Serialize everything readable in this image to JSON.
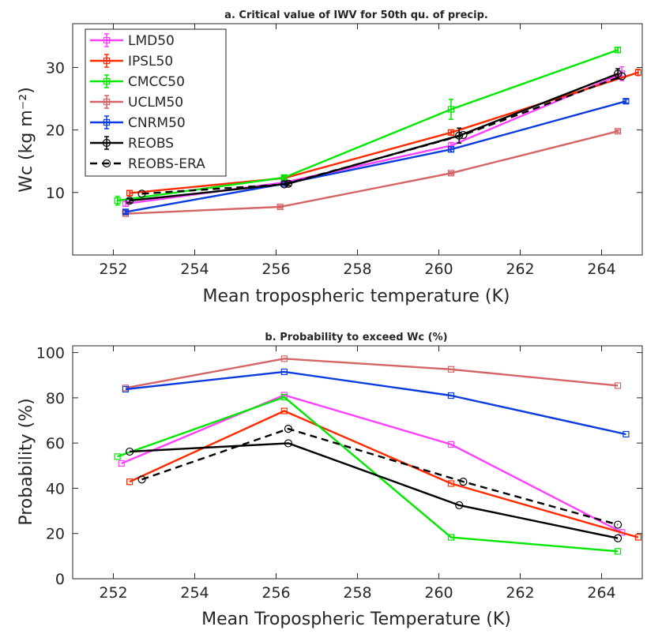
{
  "chart_data": [
    {
      "type": "line",
      "title": "a. Critical value of IWV for 50th qu. of precip.",
      "xlabel": "Mean tropospheric temperature (K)",
      "ylabel": "Wc (kg m⁻²)",
      "xlim": [
        251,
        265
      ],
      "ylim": [
        0,
        37
      ],
      "xticks": [
        252,
        254,
        256,
        258,
        260,
        262,
        264
      ],
      "yticks": [
        10,
        20,
        30
      ],
      "grid": false,
      "legend_position": "top-left",
      "series": [
        {
          "name": "LMD50",
          "color": "#ff40ff",
          "marker": "square",
          "dash": false,
          "x": [
            252.3,
            256.2,
            260.3,
            264.5
          ],
          "y": [
            8.2,
            11.6,
            17.5,
            29.0
          ],
          "err": [
            0.4,
            0.3,
            0.5,
            1.1
          ]
        },
        {
          "name": "IPSL50",
          "color": "#ff2a00",
          "marker": "square",
          "dash": false,
          "x": [
            252.4,
            256.2,
            260.3,
            264.9
          ],
          "y": [
            9.9,
            12.3,
            19.6,
            29.2
          ],
          "err": [
            0.4,
            0.3,
            0.4,
            0.5
          ]
        },
        {
          "name": "CMCC50",
          "color": "#00e800",
          "marker": "square",
          "dash": false,
          "x": [
            252.1,
            256.2,
            260.3,
            264.4
          ],
          "y": [
            8.7,
            12.4,
            23.3,
            32.8
          ],
          "err": [
            0.7,
            0.3,
            1.6,
            0.4
          ]
        },
        {
          "name": "UCLM50",
          "color": "#d56464",
          "marker": "square",
          "dash": false,
          "x": [
            252.3,
            256.1,
            260.3,
            264.4
          ],
          "y": [
            6.6,
            7.7,
            13.1,
            19.8
          ],
          "err": [
            0.2,
            0.2,
            0.2,
            0.2
          ]
        },
        {
          "name": "CNRM50",
          "color": "#0b3bdf",
          "marker": "square",
          "dash": false,
          "x": [
            252.3,
            256.2,
            260.3,
            264.6
          ],
          "y": [
            6.9,
            11.4,
            16.9,
            24.6
          ],
          "err": [
            0.3,
            0.2,
            0.4,
            0.3
          ]
        },
        {
          "name": "REOBS",
          "color": "#000000",
          "marker": "circle",
          "dash": false,
          "x": [
            252.4,
            256.3,
            260.5,
            264.4
          ],
          "y": [
            8.7,
            11.4,
            19.1,
            29.0
          ],
          "err": [
            0.3,
            0.3,
            1.2,
            0.8
          ]
        },
        {
          "name": "REOBS-ERA",
          "color": "#000000",
          "marker": "circle",
          "dash": true,
          "x": [
            252.7,
            256.2,
            260.6,
            264.5
          ],
          "y": [
            9.8,
            11.3,
            19.2,
            28.6
          ],
          "err": null
        }
      ]
    },
    {
      "type": "line",
      "title": "b. Probability to exceed Wc (%)",
      "xlabel": "Mean Tropospheric Temperature (K)",
      "ylabel": "Probability (%)",
      "xlim": [
        251,
        265
      ],
      "ylim": [
        0,
        103
      ],
      "xticks": [
        252,
        254,
        256,
        258,
        260,
        262,
        264
      ],
      "yticks": [
        0,
        20,
        40,
        60,
        80,
        100
      ],
      "grid": false,
      "series": [
        {
          "name": "LMD50",
          "color": "#ff40ff",
          "marker": "square",
          "dash": false,
          "x": [
            252.2,
            256.2,
            260.3,
            264.5
          ],
          "y": [
            51.0,
            81.2,
            59.4,
            20.5
          ]
        },
        {
          "name": "IPSL50",
          "color": "#ff2a00",
          "marker": "square",
          "dash": false,
          "x": [
            252.4,
            256.2,
            260.3,
            264.9
          ],
          "y": [
            42.9,
            74.2,
            42.1,
            18.3
          ]
        },
        {
          "name": "CMCC50",
          "color": "#00e800",
          "marker": "square",
          "dash": false,
          "x": [
            252.1,
            256.2,
            260.3,
            264.4
          ],
          "y": [
            54.0,
            80.3,
            18.3,
            12.1
          ]
        },
        {
          "name": "UCLM50",
          "color": "#d56464",
          "marker": "square",
          "dash": false,
          "x": [
            252.3,
            256.2,
            260.3,
            264.4
          ],
          "y": [
            84.4,
            97.3,
            92.6,
            85.4
          ]
        },
        {
          "name": "CNRM50",
          "color": "#0b3bdf",
          "marker": "square",
          "dash": false,
          "x": [
            252.3,
            256.2,
            260.3,
            264.6
          ],
          "y": [
            83.8,
            91.5,
            81.0,
            63.9
          ]
        },
        {
          "name": "REOBS",
          "color": "#000000",
          "marker": "circle",
          "dash": false,
          "x": [
            252.4,
            256.3,
            260.5,
            264.4
          ],
          "y": [
            56.2,
            59.9,
            32.5,
            17.9
          ]
        },
        {
          "name": "REOBS-ERA",
          "color": "#000000",
          "marker": "circle",
          "dash": true,
          "x": [
            252.7,
            256.3,
            260.6,
            264.4
          ],
          "y": [
            43.9,
            66.3,
            42.9,
            23.9
          ]
        }
      ]
    }
  ]
}
